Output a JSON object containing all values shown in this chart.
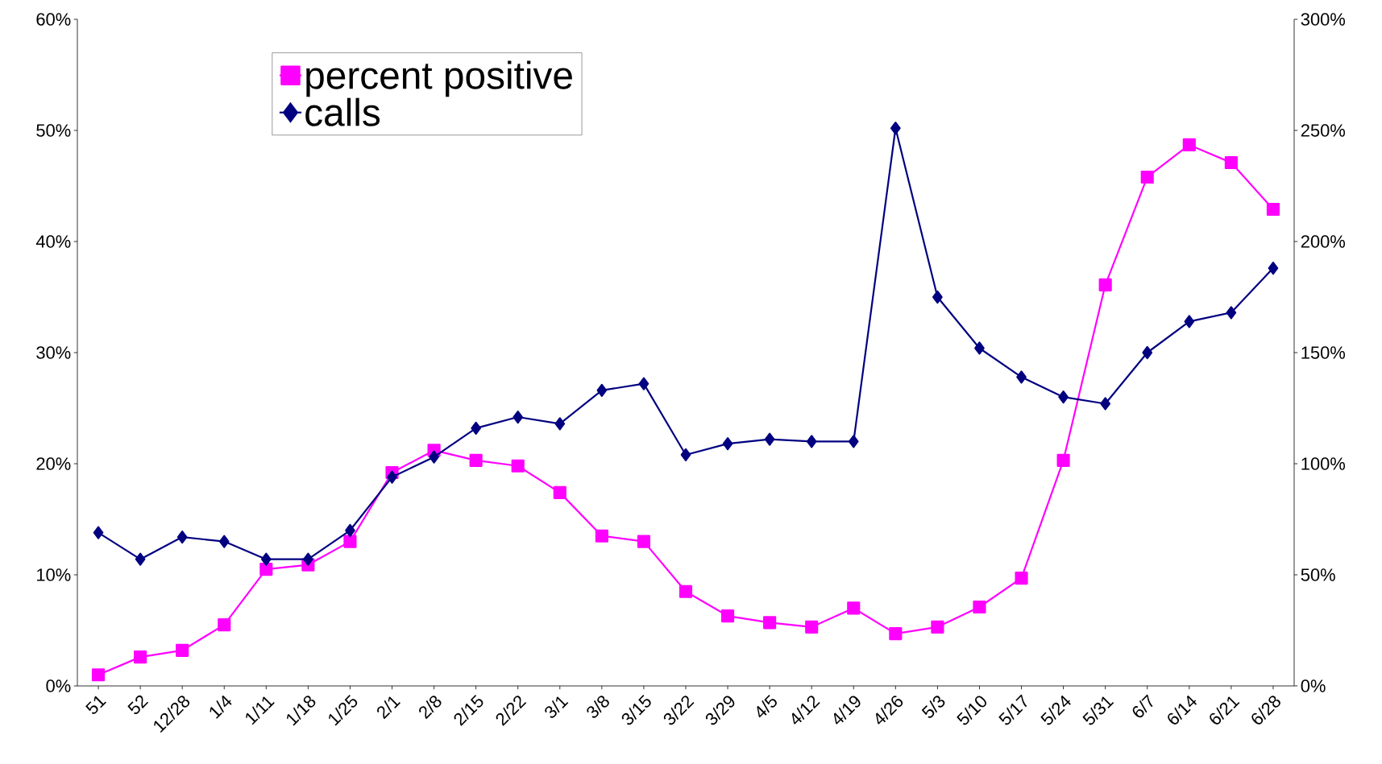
{
  "chart_data": {
    "type": "line",
    "categories": [
      "51",
      "52",
      "12/28",
      "1/4",
      "1/11",
      "1/18",
      "1/25",
      "2/1",
      "2/8",
      "2/15",
      "2/22",
      "3/1",
      "3/8",
      "3/15",
      "3/22",
      "3/29",
      "4/5",
      "4/12",
      "4/19",
      "4/26",
      "5/3",
      "5/10",
      "5/17",
      "5/24",
      "5/31",
      "6/7",
      "6/14",
      "6/21",
      "6/28"
    ],
    "series": [
      {
        "name": "percent positive",
        "color": "#ff00ff",
        "marker": "square",
        "values": [
          1.0,
          2.6,
          3.2,
          5.5,
          10.5,
          10.9,
          13.0,
          19.2,
          21.2,
          20.3,
          19.8,
          17.4,
          13.5,
          13.0,
          8.5,
          6.3,
          5.7,
          5.3,
          7.0,
          4.7,
          5.3,
          7.1,
          9.7,
          20.3,
          36.1,
          45.8,
          48.7,
          47.1,
          42.9
        ]
      },
      {
        "name": "calls",
        "color": "#000080",
        "marker": "diamond",
        "axis": "y2",
        "values": [
          69,
          57,
          67,
          65,
          57,
          57,
          70,
          94,
          103,
          116,
          121,
          118,
          133,
          136,
          104,
          109,
          111,
          110,
          110,
          251,
          175,
          152,
          139,
          130,
          127,
          150,
          164,
          168,
          188
        ]
      }
    ],
    "ylim": [
      0,
      60
    ],
    "yticks": [
      {
        "value": 0,
        "label": "0%"
      },
      {
        "value": 10,
        "label": "10%"
      },
      {
        "value": 20,
        "label": "20%"
      },
      {
        "value": 30,
        "label": "30%"
      },
      {
        "value": 40,
        "label": "40%"
      },
      {
        "value": 50,
        "label": "50%"
      },
      {
        "value": 60,
        "label": "60%"
      }
    ],
    "y2lim": [
      0,
      300
    ],
    "y2ticks": [
      {
        "value": 0,
        "label": "0%"
      },
      {
        "value": 50,
        "label": "50%"
      },
      {
        "value": 100,
        "label": "100%"
      },
      {
        "value": 150,
        "label": "150%"
      },
      {
        "value": 200,
        "label": "200%"
      },
      {
        "value": 250,
        "label": "250%"
      },
      {
        "value": 300,
        "label": "300%"
      }
    ],
    "grid": false,
    "legend": "top left",
    "line_style": "solid"
  }
}
